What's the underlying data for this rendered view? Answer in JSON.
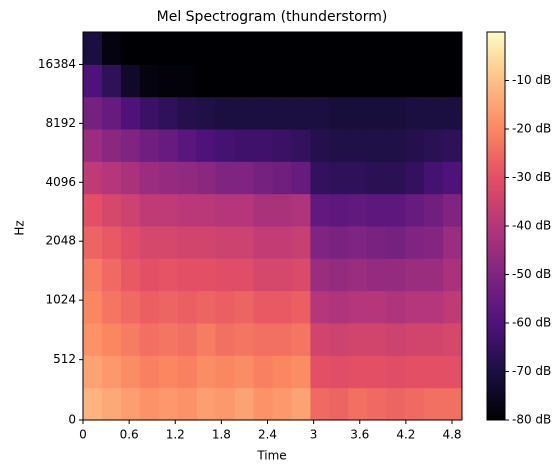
{
  "chart_data": {
    "type": "heatmap",
    "title": "Mel Spectrogram (thunderstorm)",
    "xlabel": "Time",
    "ylabel": "Hz",
    "xlim": [
      0,
      4.93
    ],
    "xticks": [
      0,
      0.6,
      1.2,
      1.8,
      2.4,
      3,
      3.6,
      4.2,
      4.8
    ],
    "yscale": "mel",
    "ylim": [
      0,
      24000
    ],
    "yticks": [
      0,
      512,
      1024,
      2048,
      4096,
      8192,
      16384
    ],
    "colormap": "magma",
    "zlim": [
      -80,
      0
    ],
    "zticks": [
      {
        "value": -10,
        "label": "-10 dB"
      },
      {
        "value": -20,
        "label": "-20 dB"
      },
      {
        "value": -30,
        "label": "-30 dB"
      },
      {
        "value": -40,
        "label": "-40 dB"
      },
      {
        "value": -50,
        "label": "-50 dB"
      },
      {
        "value": -60,
        "label": "-60 dB"
      },
      {
        "value": -70,
        "label": "-70 dB"
      },
      {
        "value": -80,
        "label": "-80 dB"
      }
    ],
    "z": [
      [
        -12,
        -14,
        -16,
        -18,
        -17,
        -18,
        -16,
        -17,
        -15,
        -18,
        -17,
        -15,
        -25,
        -26,
        -24,
        -25,
        -26,
        -25,
        -24,
        -24
      ],
      [
        -15,
        -17,
        -19,
        -21,
        -20,
        -21,
        -19,
        -20,
        -19,
        -21,
        -20,
        -19,
        -30,
        -31,
        -30,
        -30,
        -31,
        -30,
        -30,
        -30
      ],
      [
        -18,
        -20,
        -22,
        -24,
        -23,
        -24,
        -22,
        -24,
        -23,
        -24,
        -24,
        -23,
        -34,
        -35,
        -34,
        -34,
        -35,
        -34,
        -34,
        -33
      ],
      [
        -20,
        -23,
        -25,
        -27,
        -26,
        -27,
        -26,
        -27,
        -26,
        -28,
        -28,
        -27,
        -40,
        -41,
        -40,
        -40,
        -41,
        -40,
        -40,
        -38
      ],
      [
        -22,
        -25,
        -28,
        -30,
        -29,
        -30,
        -30,
        -31,
        -31,
        -33,
        -33,
        -32,
        -45,
        -46,
        -45,
        -46,
        -46,
        -45,
        -45,
        -42
      ],
      [
        -26,
        -28,
        -31,
        -33,
        -33,
        -34,
        -34,
        -35,
        -35,
        -37,
        -37,
        -36,
        -50,
        -51,
        -50,
        -51,
        -52,
        -50,
        -49,
        -45
      ],
      [
        -30,
        -33,
        -35,
        -38,
        -38,
        -39,
        -39,
        -40,
        -40,
        -42,
        -42,
        -41,
        -56,
        -57,
        -56,
        -57,
        -57,
        -55,
        -53,
        -50
      ],
      [
        -38,
        -40,
        -42,
        -45,
        -46,
        -47,
        -48,
        -50,
        -50,
        -52,
        -53,
        -55,
        -65,
        -66,
        -66,
        -67,
        -67,
        -65,
        -62,
        -60
      ],
      [
        -45,
        -48,
        -50,
        -53,
        -55,
        -58,
        -60,
        -62,
        -63,
        -63,
        -64,
        -65,
        -68,
        -69,
        -69,
        -69,
        -69,
        -68,
        -67,
        -66
      ],
      [
        -52,
        -55,
        -60,
        -64,
        -66,
        -68,
        -69,
        -70,
        -70,
        -70,
        -70,
        -70,
        -70,
        -71,
        -71,
        -71,
        -71,
        -70,
        -70,
        -70
      ],
      [
        -60,
        -66,
        -74,
        -78,
        -79,
        -79,
        -80,
        -80,
        -80,
        -80,
        -80,
        -80,
        -80,
        -80,
        -80,
        -80,
        -80,
        -80,
        -80,
        -80
      ],
      [
        -70,
        -78,
        -80,
        -80,
        -80,
        -80,
        -80,
        -80,
        -80,
        -80,
        -80,
        -80,
        -80,
        -80,
        -80,
        -80,
        -80,
        -80,
        -80,
        -80
      ]
    ]
  }
}
